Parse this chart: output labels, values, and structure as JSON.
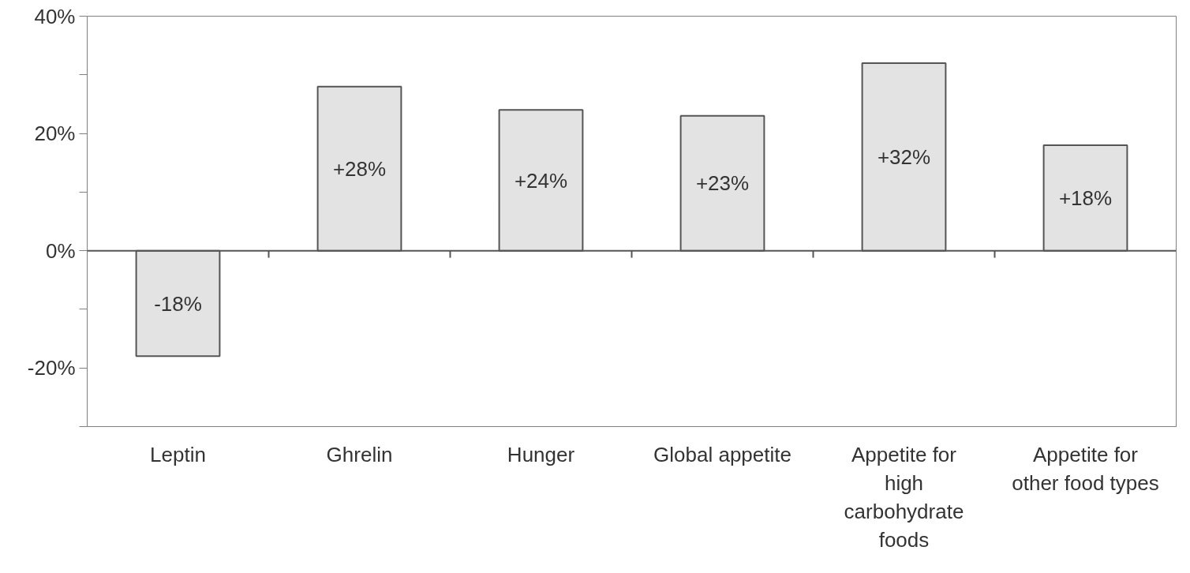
{
  "chart_data": {
    "type": "bar",
    "categories": [
      "Leptin",
      "Ghrelin",
      "Hunger",
      "Global appetite",
      "Appetite for high carbohydrate foods",
      "Appetite for other food types"
    ],
    "values": [
      -18,
      28,
      24,
      23,
      32,
      18
    ],
    "value_labels": [
      "-18%",
      "+28%",
      "+24%",
      "+23%",
      "+32%",
      "+18%"
    ],
    "color": "#e3e3e3",
    "ylim": [
      -30,
      40
    ],
    "yticks": [
      {
        "value": -30,
        "label": null
      },
      {
        "value": -20,
        "label": "-20%"
      },
      {
        "value": -10,
        "label": null
      },
      {
        "value": 0,
        "label": "0%"
      },
      {
        "value": 10,
        "label": null
      },
      {
        "value": 20,
        "label": "20%"
      },
      {
        "value": 30,
        "label": null
      },
      {
        "value": 40,
        "label": "40%"
      }
    ]
  }
}
